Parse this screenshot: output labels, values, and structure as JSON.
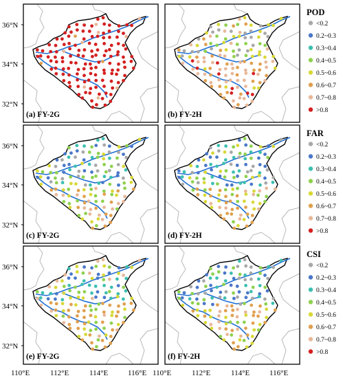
{
  "x_ticks": [
    "110°E",
    "112°E",
    "114°E",
    "116°E"
  ],
  "y_ticks": [
    "36°N",
    "34°N",
    "32°N"
  ],
  "panels": [
    {
      "label": "(a) FY-2G",
      "metric": "POD",
      "satellite": "FY-2G"
    },
    {
      "label": "(b) FY-2H",
      "metric": "POD",
      "satellite": "FY-2H"
    },
    {
      "label": "(c) FY-2G",
      "metric": "FAR",
      "satellite": "FY-2G"
    },
    {
      "label": "(d) FY-2H",
      "metric": "FAR",
      "satellite": "FY-2H"
    },
    {
      "label": "(e) FY-2G",
      "metric": "CSI",
      "satellite": "FY-2G"
    },
    {
      "label": "(f) FY-2H",
      "metric": "CSI",
      "satellite": "FY-2H"
    }
  ],
  "legends": [
    {
      "title": "POD",
      "bins": [
        "<0.2",
        "0.2~0.3",
        "0.3~0.4",
        "0.4~0.5",
        "0.5~0.6",
        "0.6~0.7",
        "0.7~0.8",
        ">0.8"
      ]
    },
    {
      "title": "FAR",
      "bins": [
        "<0.2",
        "0.2~0.3",
        "0.3~0.4",
        "0.4~0.5",
        "0.5~0.6",
        "0.6~0.7",
        "0.7~0.8",
        ">0.8"
      ]
    },
    {
      "title": "CSI",
      "bins": [
        "<0.2",
        "0.2~0.3",
        "0.3~0.4",
        "0.4~0.5",
        "0.5~0.6",
        "0.6~0.7",
        "0.7~0.8",
        ">0.8"
      ]
    }
  ],
  "bin_colors": [
    "#a8a8a8",
    "#4a78c8",
    "#3dbfb0",
    "#8fd14f",
    "#d8d838",
    "#e0a050",
    "#e8b89a",
    "#d42020"
  ],
  "colors": {
    "river": "#1f6fd1",
    "province_border": "#000000",
    "neighbor_border": "#b8b8b8",
    "grid": "#dddddd"
  }
}
